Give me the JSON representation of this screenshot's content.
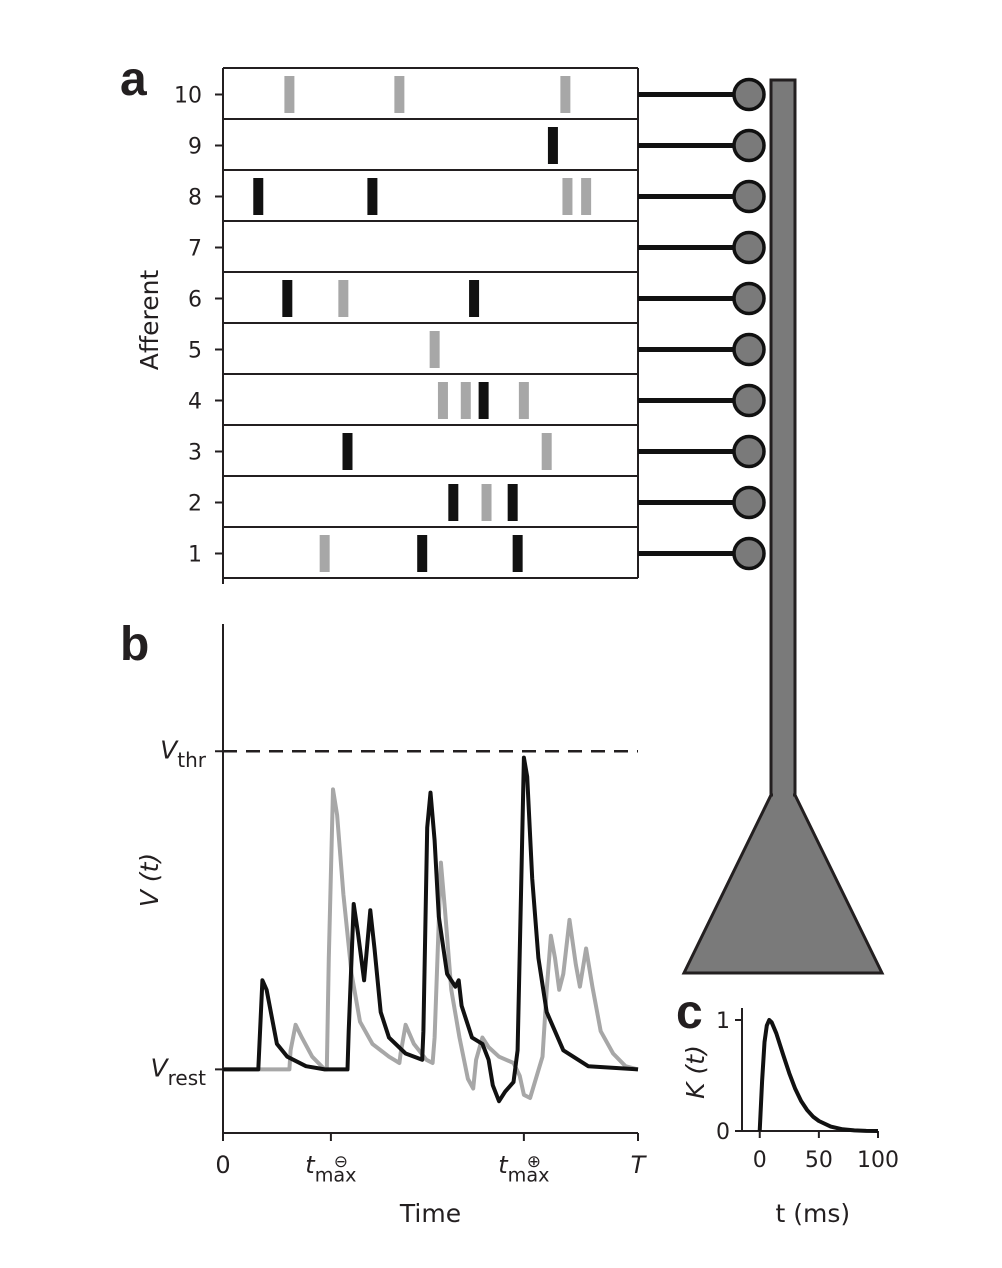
{
  "panels": {
    "a": "a",
    "b": "b",
    "c": "c"
  },
  "colors": {
    "spike_black": "#111111",
    "spike_gray": "#a7a7a7",
    "neuron": "#7a7a7a",
    "line_black": "#111111",
    "line_gray": "#a7a7a7"
  },
  "panel_a": {
    "ylabel": "Afferent",
    "afferents": [
      {
        "label": "10",
        "spikes": [
          {
            "t": 0.16,
            "c": "gray"
          },
          {
            "t": 0.425,
            "c": "gray"
          },
          {
            "t": 0.825,
            "c": "gray"
          }
        ]
      },
      {
        "label": "9",
        "spikes": [
          {
            "t": 0.795,
            "c": "black"
          }
        ]
      },
      {
        "label": "8",
        "spikes": [
          {
            "t": 0.085,
            "c": "black"
          },
          {
            "t": 0.36,
            "c": "black"
          },
          {
            "t": 0.83,
            "c": "gray"
          },
          {
            "t": 0.875,
            "c": "gray"
          }
        ]
      },
      {
        "label": "7",
        "spikes": []
      },
      {
        "label": "6",
        "spikes": [
          {
            "t": 0.155,
            "c": "black"
          },
          {
            "t": 0.29,
            "c": "gray"
          },
          {
            "t": 0.605,
            "c": "black"
          }
        ]
      },
      {
        "label": "5",
        "spikes": [
          {
            "t": 0.51,
            "c": "gray"
          }
        ]
      },
      {
        "label": "4",
        "spikes": [
          {
            "t": 0.53,
            "c": "gray"
          },
          {
            "t": 0.585,
            "c": "gray"
          },
          {
            "t": 0.628,
            "c": "black"
          },
          {
            "t": 0.725,
            "c": "gray"
          }
        ]
      },
      {
        "label": "3",
        "spikes": [
          {
            "t": 0.3,
            "c": "black"
          },
          {
            "t": 0.78,
            "c": "gray"
          }
        ]
      },
      {
        "label": "2",
        "spikes": [
          {
            "t": 0.555,
            "c": "black"
          },
          {
            "t": 0.635,
            "c": "gray"
          },
          {
            "t": 0.698,
            "c": "black"
          }
        ]
      },
      {
        "label": "1",
        "spikes": [
          {
            "t": 0.245,
            "c": "gray"
          },
          {
            "t": 0.48,
            "c": "black"
          },
          {
            "t": 0.71,
            "c": "black"
          }
        ]
      }
    ]
  },
  "chart_data": [
    {
      "type": "line",
      "panel": "b",
      "ylabel": "V (t)",
      "xlabel": "Time",
      "x_range": [
        0,
        1
      ],
      "y_range": [
        -0.2,
        1.4
      ],
      "v_rest": 0,
      "v_thr": 1.0,
      "ytick_labels": {
        "v_thr": {
          "main": "V",
          "sub": "thr"
        },
        "v_rest": {
          "main": "V",
          "sub": "rest"
        }
      },
      "xtick_labels": [
        {
          "x": 0,
          "main": "0"
        },
        {
          "x": 0.26,
          "main": "t",
          "sub": "max",
          "sup": "⊖"
        },
        {
          "x": 0.725,
          "main": "t",
          "sub": "max",
          "sup": "⊕"
        },
        {
          "x": 1.0,
          "main": "T"
        }
      ],
      "series": [
        {
          "color": "#111111",
          "points": [
            [
              0,
              0
            ],
            [
              0.08,
              0
            ],
            [
              0.085,
              0
            ],
            [
              0.095,
              0.28
            ],
            [
              0.105,
              0.25
            ],
            [
              0.13,
              0.08
            ],
            [
              0.155,
              0.04
            ],
            [
              0.2,
              0.01
            ],
            [
              0.245,
              0
            ],
            [
              0.3,
              0
            ],
            [
              0.303,
              0.12
            ],
            [
              0.315,
              0.52
            ],
            [
              0.325,
              0.43
            ],
            [
              0.34,
              0.28
            ],
            [
              0.355,
              0.5
            ],
            [
              0.365,
              0.38
            ],
            [
              0.38,
              0.18
            ],
            [
              0.4,
              0.1
            ],
            [
              0.44,
              0.05
            ],
            [
              0.48,
              0.03
            ],
            [
              0.483,
              0.12
            ],
            [
              0.492,
              0.76
            ],
            [
              0.5,
              0.87
            ],
            [
              0.51,
              0.72
            ],
            [
              0.52,
              0.48
            ],
            [
              0.54,
              0.3
            ],
            [
              0.56,
              0.26
            ],
            [
              0.568,
              0.28
            ],
            [
              0.575,
              0.2
            ],
            [
              0.6,
              0.1
            ],
            [
              0.625,
              0.08
            ],
            [
              0.64,
              0.03
            ],
            [
              0.65,
              -0.05
            ],
            [
              0.665,
              -0.1
            ],
            [
              0.68,
              -0.07
            ],
            [
              0.7,
              -0.04
            ],
            [
              0.71,
              0.06
            ],
            [
              0.718,
              0.55
            ],
            [
              0.725,
              0.98
            ],
            [
              0.733,
              0.92
            ],
            [
              0.745,
              0.6
            ],
            [
              0.76,
              0.35
            ],
            [
              0.78,
              0.18
            ],
            [
              0.82,
              0.06
            ],
            [
              0.88,
              0.01
            ],
            [
              1.0,
              0
            ]
          ]
        },
        {
          "color": "#a7a7a7",
          "points": [
            [
              0,
              0
            ],
            [
              0.16,
              0
            ],
            [
              0.163,
              0.06
            ],
            [
              0.175,
              0.14
            ],
            [
              0.19,
              0.1
            ],
            [
              0.215,
              0.04
            ],
            [
              0.245,
              0
            ],
            [
              0.25,
              0
            ],
            [
              0.255,
              0.35
            ],
            [
              0.265,
              0.88
            ],
            [
              0.275,
              0.8
            ],
            [
              0.29,
              0.55
            ],
            [
              0.31,
              0.3
            ],
            [
              0.33,
              0.15
            ],
            [
              0.36,
              0.08
            ],
            [
              0.4,
              0.04
            ],
            [
              0.425,
              0.02
            ],
            [
              0.428,
              0.05
            ],
            [
              0.44,
              0.14
            ],
            [
              0.46,
              0.08
            ],
            [
              0.49,
              0.03
            ],
            [
              0.505,
              0.02
            ],
            [
              0.51,
              0.1
            ],
            [
              0.525,
              0.65
            ],
            [
              0.535,
              0.5
            ],
            [
              0.55,
              0.25
            ],
            [
              0.57,
              0.1
            ],
            [
              0.59,
              -0.03
            ],
            [
              0.603,
              -0.06
            ],
            [
              0.61,
              0.03
            ],
            [
              0.625,
              0.1
            ],
            [
              0.64,
              0.07
            ],
            [
              0.665,
              0.04
            ],
            [
              0.7,
              0.02
            ],
            [
              0.715,
              -0.02
            ],
            [
              0.725,
              -0.08
            ],
            [
              0.74,
              -0.09
            ],
            [
              0.77,
              0.04
            ],
            [
              0.78,
              0.25
            ],
            [
              0.79,
              0.42
            ],
            [
              0.8,
              0.35
            ],
            [
              0.81,
              0.25
            ],
            [
              0.82,
              0.3
            ],
            [
              0.835,
              0.47
            ],
            [
              0.85,
              0.33
            ],
            [
              0.86,
              0.26
            ],
            [
              0.875,
              0.38
            ],
            [
              0.89,
              0.26
            ],
            [
              0.91,
              0.12
            ],
            [
              0.94,
              0.05
            ],
            [
              0.97,
              0.01
            ],
            [
              1.0,
              0
            ]
          ]
        }
      ]
    },
    {
      "type": "line",
      "panel": "c",
      "ylabel": "K (t)",
      "xlabel": "t (ms)",
      "x_range": [
        -15,
        100
      ],
      "y_range": [
        0,
        1
      ],
      "xticks": [
        0,
        50,
        100
      ],
      "yticks": [
        0,
        1
      ],
      "series": [
        {
          "color": "#111111",
          "points": [
            [
              0,
              0
            ],
            [
              2,
              0.45
            ],
            [
              4,
              0.8
            ],
            [
              6,
              0.95
            ],
            [
              8,
              1.0
            ],
            [
              10,
              0.98
            ],
            [
              14,
              0.88
            ],
            [
              20,
              0.68
            ],
            [
              25,
              0.52
            ],
            [
              30,
              0.38
            ],
            [
              35,
              0.27
            ],
            [
              40,
              0.19
            ],
            [
              45,
              0.13
            ],
            [
              50,
              0.09
            ],
            [
              60,
              0.04
            ],
            [
              70,
              0.015
            ],
            [
              80,
              0.005
            ],
            [
              90,
              0.001
            ],
            [
              100,
              0
            ]
          ]
        }
      ]
    }
  ]
}
